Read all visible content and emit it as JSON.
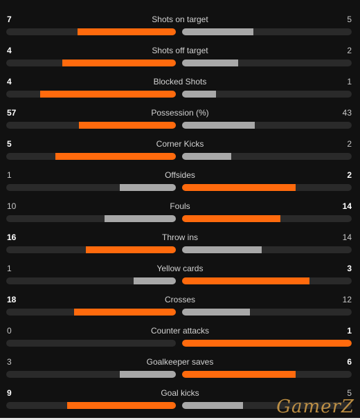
{
  "colors": {
    "background": "#111111",
    "winner_bar": "#ff6a0d",
    "loser_bar": "#a8a8a8",
    "track": "#2a2a2a"
  },
  "stats": [
    {
      "name": "Shots on target",
      "home": "7",
      "away": "5",
      "home_fraction": 0.58,
      "away_fraction": 0.42,
      "leader": "home"
    },
    {
      "name": "Shots off target",
      "home": "4",
      "away": "2",
      "home_fraction": 0.67,
      "away_fraction": 0.33,
      "leader": "home"
    },
    {
      "name": "Blocked Shots",
      "home": "4",
      "away": "1",
      "home_fraction": 0.8,
      "away_fraction": 0.2,
      "leader": "home"
    },
    {
      "name": "Possession (%)",
      "home": "57",
      "away": "43",
      "home_fraction": 0.57,
      "away_fraction": 0.43,
      "leader": "home"
    },
    {
      "name": "Corner Kicks",
      "home": "5",
      "away": "2",
      "home_fraction": 0.71,
      "away_fraction": 0.29,
      "leader": "home"
    },
    {
      "name": "Offsides",
      "home": "1",
      "away": "2",
      "home_fraction": 0.33,
      "away_fraction": 0.67,
      "leader": "away"
    },
    {
      "name": "Fouls",
      "home": "10",
      "away": "14",
      "home_fraction": 0.42,
      "away_fraction": 0.58,
      "leader": "away"
    },
    {
      "name": "Throw ins",
      "home": "16",
      "away": "14",
      "home_fraction": 0.53,
      "away_fraction": 0.47,
      "leader": "home"
    },
    {
      "name": "Yellow cards",
      "home": "1",
      "away": "3",
      "home_fraction": 0.25,
      "away_fraction": 0.75,
      "leader": "away"
    },
    {
      "name": "Crosses",
      "home": "18",
      "away": "12",
      "home_fraction": 0.6,
      "away_fraction": 0.4,
      "leader": "home"
    },
    {
      "name": "Counter attacks",
      "home": "0",
      "away": "1",
      "home_fraction": 0.0,
      "away_fraction": 1.0,
      "leader": "away"
    },
    {
      "name": "Goalkeeper saves",
      "home": "3",
      "away": "6",
      "home_fraction": 0.33,
      "away_fraction": 0.67,
      "leader": "away"
    },
    {
      "name": "Goal kicks",
      "home": "9",
      "away": "5",
      "home_fraction": 0.64,
      "away_fraction": 0.36,
      "leader": "home"
    }
  ],
  "watermark": "GamerZ"
}
